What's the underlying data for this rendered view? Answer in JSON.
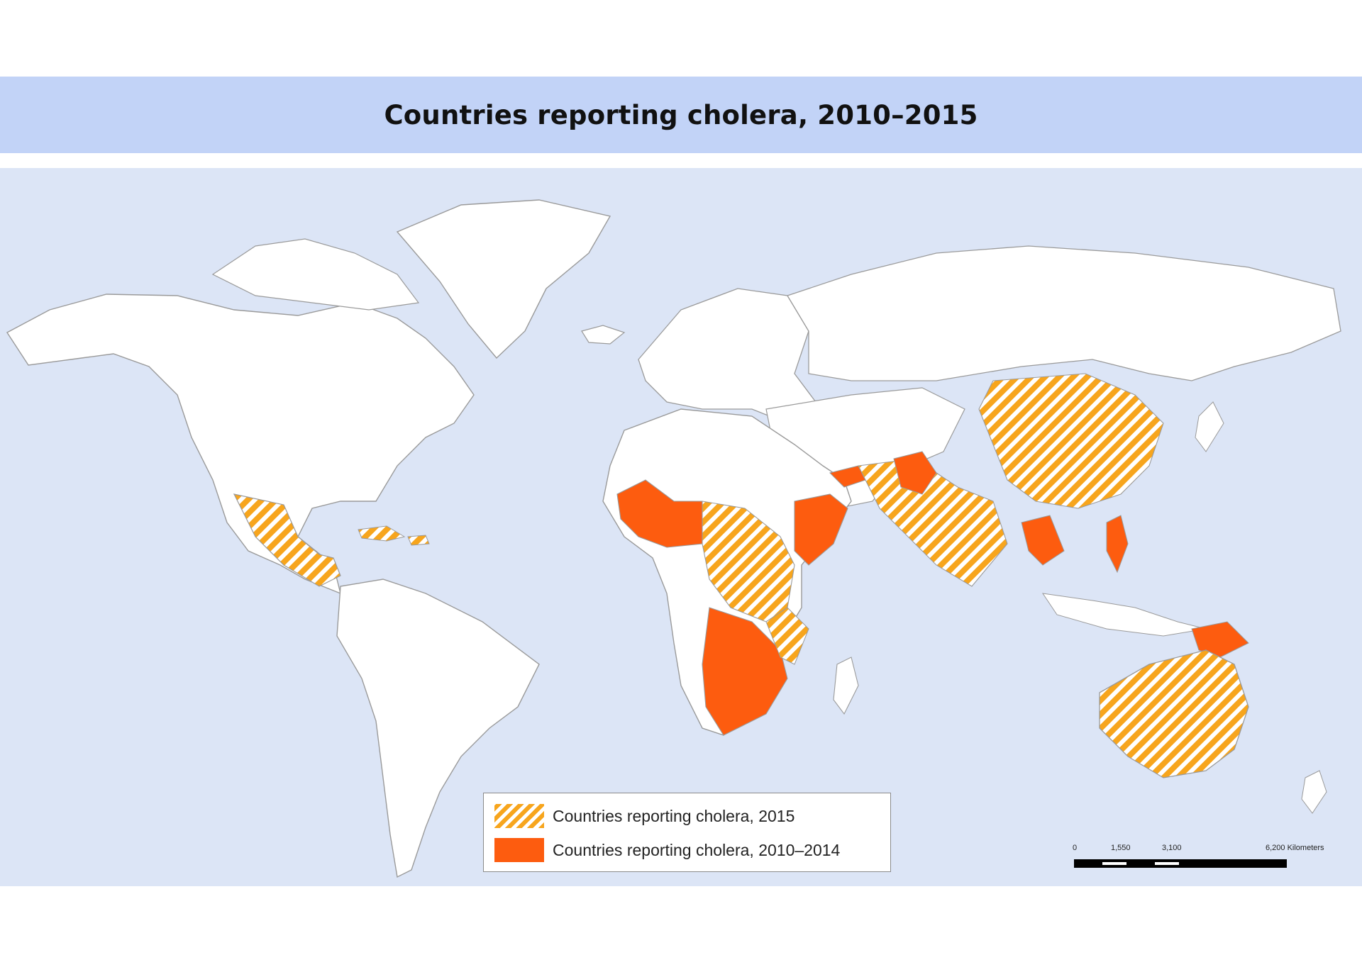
{
  "title": "Countries reporting cholera, 2010–2015",
  "legend": {
    "items": [
      {
        "label": "Countries reporting cholera, 2015",
        "style": "hatched",
        "colors": [
          "#f7a51d",
          "#ffffff"
        ]
      },
      {
        "label": "Countries reporting cholera, 2010–2014",
        "style": "solid",
        "color": "#fd5c0f"
      }
    ]
  },
  "scale_bar": {
    "ticks": [
      "0",
      "1,550",
      "3,100",
      "6,200 Kilometers"
    ]
  },
  "colors": {
    "ocean": "#dce5f6",
    "title_band": "#c2d3f7",
    "land": "#ffffff",
    "border": "#9a9a9a",
    "hatch_orange": "#f7a51d",
    "solid_orange": "#fd5c0f"
  }
}
